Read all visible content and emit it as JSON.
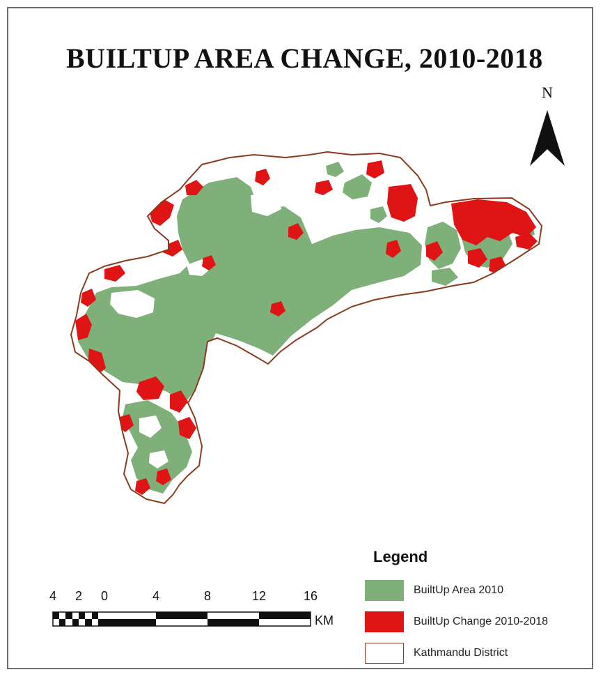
{
  "map": {
    "title": "BUILTUP AREA CHANGE, 2010-2018",
    "north_label": "N",
    "colors": {
      "builtup_2010": "#7fb07a",
      "builtup_change": "#e01414",
      "district_outline": "#8b3a1e",
      "background": "#ffffff"
    }
  },
  "legend": {
    "title": "Legend",
    "items": [
      {
        "label": "BuiltUp Area 2010",
        "color": "#7fb07a"
      },
      {
        "label": "BuiltUp Change 2010-2018",
        "color": "#e01414"
      },
      {
        "label": "Kathmandu District",
        "color": "#ffffff",
        "outline": "#8b3a1e"
      }
    ]
  },
  "scale_bar": {
    "ticks": [
      "4",
      "2",
      "0",
      "4",
      "8",
      "12",
      "16"
    ],
    "unit": "KM"
  }
}
